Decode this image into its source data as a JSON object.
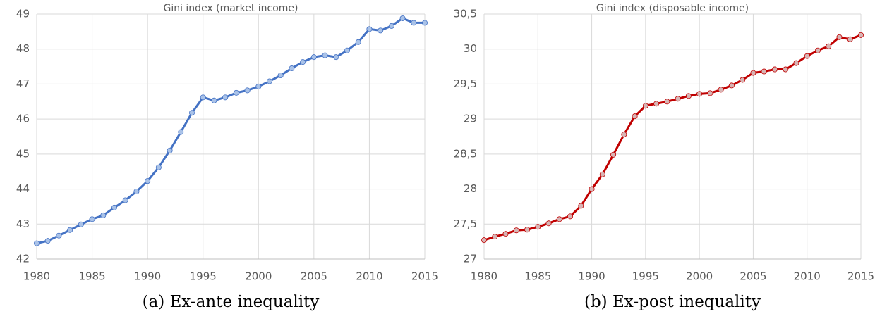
{
  "chart_data": [
    {
      "type": "line",
      "title": "Gini index (market income)",
      "caption": "(a) Ex-ante inequality",
      "x": [
        1980,
        1981,
        1982,
        1983,
        1984,
        1985,
        1986,
        1987,
        1988,
        1989,
        1990,
        1991,
        1992,
        1993,
        1994,
        1995,
        1996,
        1997,
        1998,
        1999,
        2000,
        2001,
        2002,
        2003,
        2004,
        2005,
        2006,
        2007,
        2008,
        2009,
        2010,
        2011,
        2012,
        2013,
        2014,
        2015
      ],
      "values": [
        42.45,
        42.52,
        42.67,
        42.83,
        42.99,
        43.14,
        43.25,
        43.47,
        43.68,
        43.93,
        44.23,
        44.62,
        45.1,
        45.63,
        46.18,
        46.62,
        46.53,
        46.62,
        46.75,
        46.82,
        46.93,
        47.08,
        47.25,
        47.45,
        47.63,
        47.77,
        47.82,
        47.77,
        47.96,
        48.2,
        48.57,
        48.53,
        48.66,
        48.88,
        48.75,
        48.75
      ],
      "color": "#4472c4",
      "marker_color": "#a9c2e8",
      "xlim": [
        1980,
        2015
      ],
      "xticks": [
        1980,
        1985,
        1990,
        1995,
        2000,
        2005,
        2010,
        2015
      ],
      "ylim": [
        42,
        49
      ],
      "yticks": [
        42,
        43,
        44,
        45,
        46,
        47,
        48,
        49
      ],
      "grid": true
    },
    {
      "type": "line",
      "title": "Gini index (disposable income)",
      "caption": "(b) Ex-post inequality",
      "x": [
        1980,
        1981,
        1982,
        1983,
        1984,
        1985,
        1986,
        1987,
        1988,
        1989,
        1990,
        1991,
        1992,
        1993,
        1994,
        1995,
        1996,
        1997,
        1998,
        1999,
        2000,
        2001,
        2002,
        2003,
        2004,
        2005,
        2006,
        2007,
        2008,
        2009,
        2010,
        2011,
        2012,
        2013,
        2014,
        2015
      ],
      "values": [
        27.27,
        27.32,
        27.36,
        27.41,
        27.42,
        27.46,
        27.51,
        27.57,
        27.61,
        27.76,
        28.0,
        28.21,
        28.49,
        28.78,
        29.04,
        29.19,
        29.22,
        29.25,
        29.29,
        29.33,
        29.36,
        29.37,
        29.42,
        29.48,
        29.56,
        29.66,
        29.68,
        29.71,
        29.71,
        29.8,
        29.9,
        29.98,
        30.04,
        30.17,
        30.14,
        30.2
      ],
      "color": "#c00000",
      "marker_color": "#d8b4b4",
      "xlim": [
        1980,
        2015
      ],
      "xticks": [
        1980,
        1985,
        1990,
        1995,
        2000,
        2005,
        2010,
        2015
      ],
      "ylim": [
        27,
        30.5
      ],
      "yticks": [
        27,
        {
          "value": 27.5,
          "label": "27,5"
        },
        28,
        {
          "value": 28.5,
          "label": "28,5"
        },
        29,
        {
          "value": 29.5,
          "label": "29,5"
        },
        30,
        {
          "value": 30.5,
          "label": "30,5"
        }
      ],
      "grid": true
    }
  ]
}
